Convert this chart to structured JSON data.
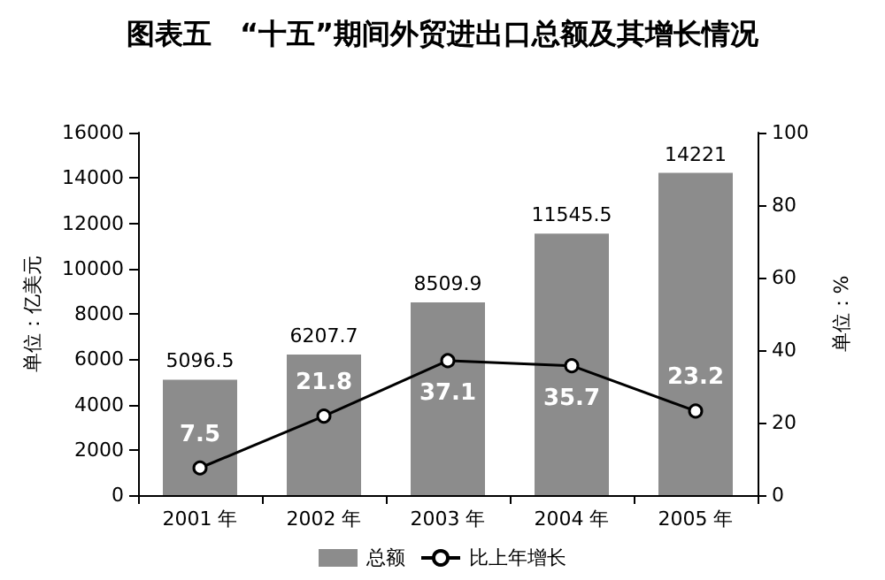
{
  "chart_data": {
    "type": "bar",
    "title": "图表五　“十五”期间外贸进出口总额及其增长情况",
    "ylabel": "单位：亿美元",
    "y2label": "单位：%",
    "categories": [
      "2001 年",
      "2002 年",
      "2003 年",
      "2004 年",
      "2005 年"
    ],
    "series": [
      {
        "name": "总额",
        "color": "#8c8c8c",
        "values": [
          5096.5,
          6207.7,
          8509.9,
          11545.5,
          14221
        ]
      },
      {
        "name": "比上年增长",
        "type": "line",
        "axis": "y2",
        "color": "#000000",
        "values": [
          7.5,
          21.8,
          37.1,
          35.7,
          23.2
        ]
      }
    ],
    "ylim": [
      0,
      16000
    ],
    "yticks": [
      0,
      2000,
      4000,
      6000,
      8000,
      10000,
      12000,
      14000,
      16000
    ],
    "y2lim": [
      0,
      100
    ],
    "y2ticks": [
      0,
      20,
      40,
      60,
      80,
      100
    ],
    "data_labels": true,
    "legend": "bottom",
    "grid": false,
    "marker": "circle",
    "line_style": "solid"
  }
}
